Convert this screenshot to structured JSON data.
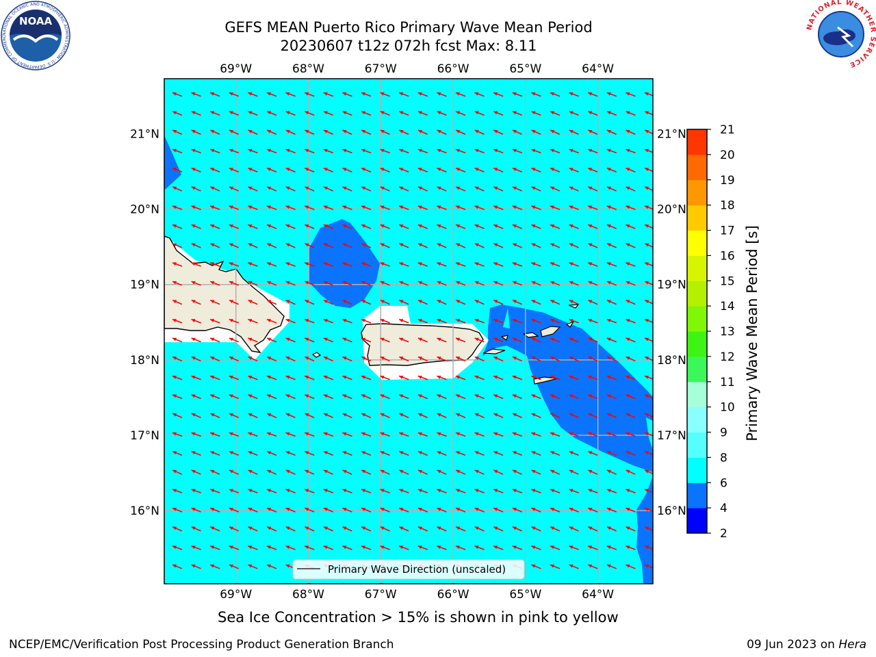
{
  "title_line1": "GEFS MEAN Puerto Rico Primary Wave Mean Period",
  "title_line2": "20230607 t12z 072h fcst   Max: 8.11",
  "lon_labels": [
    "69°W",
    "68°W",
    "67°W",
    "66°W",
    "65°W",
    "64°W"
  ],
  "lat_labels": [
    "21°N",
    "20°N",
    "19°N",
    "18°N",
    "17°N",
    "16°N"
  ],
  "legend_label": "Primary Wave Direction (unscaled)",
  "colorbar": {
    "label": "Primary Wave Mean Period [s]",
    "ticks": [
      "2",
      "4",
      "6",
      "8",
      "9",
      "10",
      "11",
      "12",
      "13",
      "14",
      "15",
      "16",
      "17",
      "18",
      "19",
      "20",
      "21"
    ],
    "colors": [
      "#0000ff",
      "#0a74ff",
      "#00ffff",
      "#55ffff",
      "#8affff",
      "#a6ffd9",
      "#3cf75a",
      "#3ef414",
      "#7ff707",
      "#b4f000",
      "#d8f500",
      "#ffff00",
      "#ffcb00",
      "#ff9800",
      "#ff6a00",
      "#ff3600",
      "#ff0000"
    ]
  },
  "map": {
    "lon_range": [
      -69.99,
      -63.24
    ],
    "lat_range": [
      15.03,
      21.73
    ],
    "ocean_color": "#00ffff",
    "high_period_color": "#0a74ff",
    "land_color": "#efecdc",
    "arrow_color": "#ff0000",
    "grid_color": "#b0b0b0"
  },
  "bottom_note": "Sea Ice Concentration > 15% is shown in pink to yellow",
  "footer_left": "NCEP/EMC/Verification Post Processing Product Generation Branch",
  "footer_right_date": "09 Jun 2023 on ",
  "footer_right_host": "Hera",
  "logos": {
    "noaa_text": "NOAA",
    "noaa_ring": "NATIONAL OCEANIC AND ATMOSPHERIC ADMINISTRATION · U.S. DEPARTMENT OF COMMERCE",
    "nws_ring": "NATIONAL WEATHER SERVICE"
  }
}
